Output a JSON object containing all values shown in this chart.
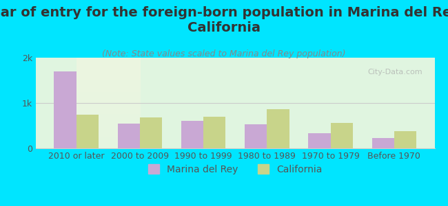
{
  "title": "Year of entry for the foreign-born population in Marina del Rey,\nCalifornia",
  "subtitle": "(Note: State values scaled to Marina del Rey population)",
  "categories": [
    "2010 or later",
    "2000 to 2009",
    "1990 to 1999",
    "1980 to 1989",
    "1970 to 1979",
    "Before 1970"
  ],
  "marina_values": [
    1700,
    550,
    600,
    530,
    330,
    220
  ],
  "california_values": [
    750,
    680,
    700,
    870,
    560,
    380
  ],
  "marina_color": "#c9a8d4",
  "california_color": "#c8d48a",
  "background_color": "#00e5ff",
  "plot_bg_color_top": "#e0f5e0",
  "plot_bg_color_bottom": "#f5f5e8",
  "ylim": [
    0,
    2000
  ],
  "yticks": [
    0,
    1000,
    2000
  ],
  "ytick_labels": [
    "0",
    "1k",
    "2k"
  ],
  "title_fontsize": 14,
  "subtitle_fontsize": 9,
  "legend_fontsize": 10,
  "tick_fontsize": 9,
  "bar_width": 0.35,
  "watermark": "City-Data.com"
}
